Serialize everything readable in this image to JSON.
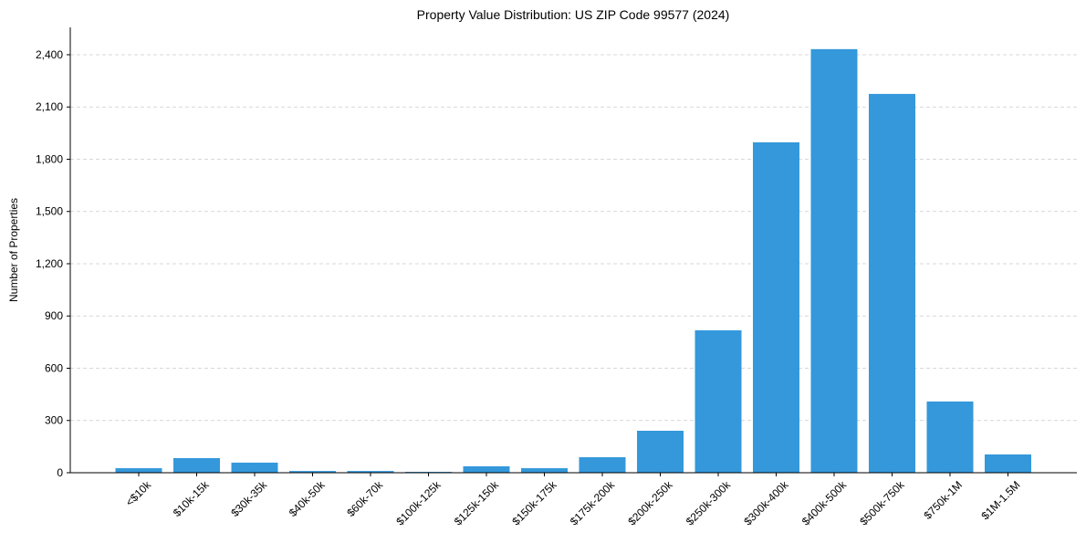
{
  "chart_data": {
    "type": "bar",
    "title": "Property Value Distribution: US ZIP Code 99577 (2024)",
    "xlabel": "",
    "ylabel": "Number of Properties",
    "categories": [
      "<$10k",
      "$10k-15k",
      "$30k-35k",
      "$40k-50k",
      "$60k-70k",
      "$100k-125k",
      "$125k-150k",
      "$150k-175k",
      "$175k-200k",
      "$200k-250k",
      "$250k-300k",
      "$300k-400k",
      "$400k-500k",
      "$500k-750k",
      "$750k-1M",
      "$1M-1.5M"
    ],
    "values": [
      26,
      84,
      58,
      10,
      10,
      5,
      37,
      26,
      89,
      241,
      818,
      1897,
      2432,
      2175,
      409,
      105
    ],
    "ylim": [
      0,
      2557
    ],
    "yticks": [
      0,
      300,
      600,
      900,
      1200,
      1500,
      1800,
      2100,
      2400
    ],
    "ytick_labels": [
      "0",
      "300",
      "600",
      "900",
      "1,200",
      "1,500",
      "1,800",
      "2,100",
      "2,400"
    ],
    "grid": "y-dashed",
    "bar_color": "#3498db",
    "grid_color": "#cccccc"
  }
}
